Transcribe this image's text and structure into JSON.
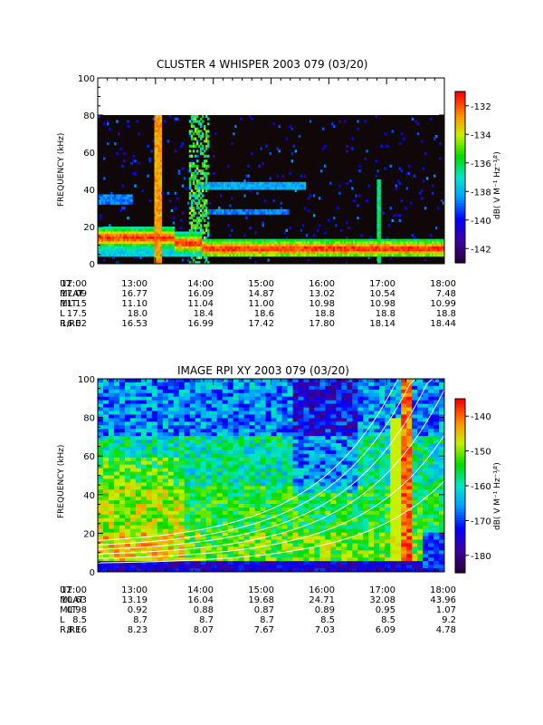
{
  "panels": [
    {
      "id": "whisper",
      "title": "CLUSTER 4 WHISPER 2003 079 (03/20)",
      "ylabel": "FREQUENCY (kHz)",
      "colorbar_label": "dB( V M⁻¹ Hz⁻¹⁄²)",
      "colorbar_ticks": [
        "-132",
        "-134",
        "-136",
        "-138",
        "-140",
        "-142"
      ],
      "ephem": {
        "labels": [
          "UT",
          "MLAT",
          "MLT",
          "L",
          "R,RE"
        ],
        "times": [
          "12:00",
          "13:00",
          "14:00",
          "15:00",
          "16:00",
          "17:00",
          "18:00"
        ],
        "rows": [
          [
            "17.09",
            "16.77",
            "16.09",
            "14.87",
            "13.02",
            "10.54",
            "7.48"
          ],
          [
            "11.15",
            "11.10",
            "11.04",
            "11.00",
            "10.98",
            "10.98",
            "10.99"
          ],
          [
            "17.5",
            "18.0",
            "18.4",
            "18.6",
            "18.8",
            "18.8",
            "18.8"
          ],
          [
            "16.02",
            "16.53",
            "16.99",
            "17.42",
            "17.80",
            "18.14",
            "18.44"
          ]
        ]
      }
    },
    {
      "id": "rpi",
      "title": "IMAGE RPI XY 2003 079 (03/20)",
      "ylabel": "FREQUENCY (kHz)",
      "colorbar_label": "dB( V M⁻¹ Hz⁻¹⁄²)",
      "colorbar_ticks": [
        "-140",
        "-150",
        "-160",
        "-170",
        "-180"
      ],
      "ephem": {
        "labels": [
          "UT",
          "MLAT",
          "MLT",
          "L",
          "R,RE"
        ],
        "times": [
          "12:00",
          "13:00",
          "14:00",
          "15:00",
          "16:00",
          "17:00",
          "18:00"
        ],
        "rows": [
          [
            "10.63",
            "13.19",
            "16.04",
            "19.68",
            "24.71",
            "32.08",
            "43.96"
          ],
          [
            "0.98",
            "0.92",
            "0.88",
            "0.87",
            "0.89",
            "0.95",
            "1.07"
          ],
          [
            "8.5",
            "8.7",
            "8.7",
            "8.7",
            "8.5",
            "8.5",
            "9.2"
          ],
          [
            "8.16",
            "8.23",
            "8.07",
            "7.67",
            "7.03",
            "6.09",
            "4.78"
          ]
        ]
      }
    }
  ],
  "chart_data": [
    {
      "type": "heatmap",
      "title": "CLUSTER 4 WHISPER 2003 079 (03/20)",
      "ylabel": "FREQUENCY (kHz)",
      "xlim": [
        "12:00",
        "18:00"
      ],
      "ylim": [
        0,
        100
      ],
      "data_ylim": [
        0,
        80
      ],
      "y_ticks": [
        0,
        20,
        40,
        60,
        80,
        100
      ],
      "colorbar": {
        "range": [
          -143,
          -131
        ],
        "ticks": [
          -132,
          -134,
          -136,
          -138,
          -140,
          -142
        ]
      },
      "features": [
        {
          "name": "continuum band",
          "freq_khz": [
            8,
            16
          ],
          "level_db": -131
        },
        {
          "name": "harmonic bursts",
          "times": [
            "12:58",
            "13:05"
          ],
          "level_db": -132
        }
      ]
    },
    {
      "type": "heatmap",
      "title": "IMAGE RPI XY 2003 079 (03/20)",
      "ylabel": "FREQUENCY (kHz)",
      "xlim": [
        "12:00",
        "18:00"
      ],
      "ylim": [
        0,
        100
      ],
      "y_ticks": [
        0,
        20,
        40,
        60,
        80,
        100
      ],
      "colorbar": {
        "range": [
          -185,
          -135
        ],
        "ticks": [
          -140,
          -150,
          -160,
          -170,
          -180
        ]
      },
      "features": [
        {
          "name": "strong emission",
          "times": [
            "16:52",
            "17:05"
          ],
          "level_db": -136
        }
      ]
    }
  ]
}
